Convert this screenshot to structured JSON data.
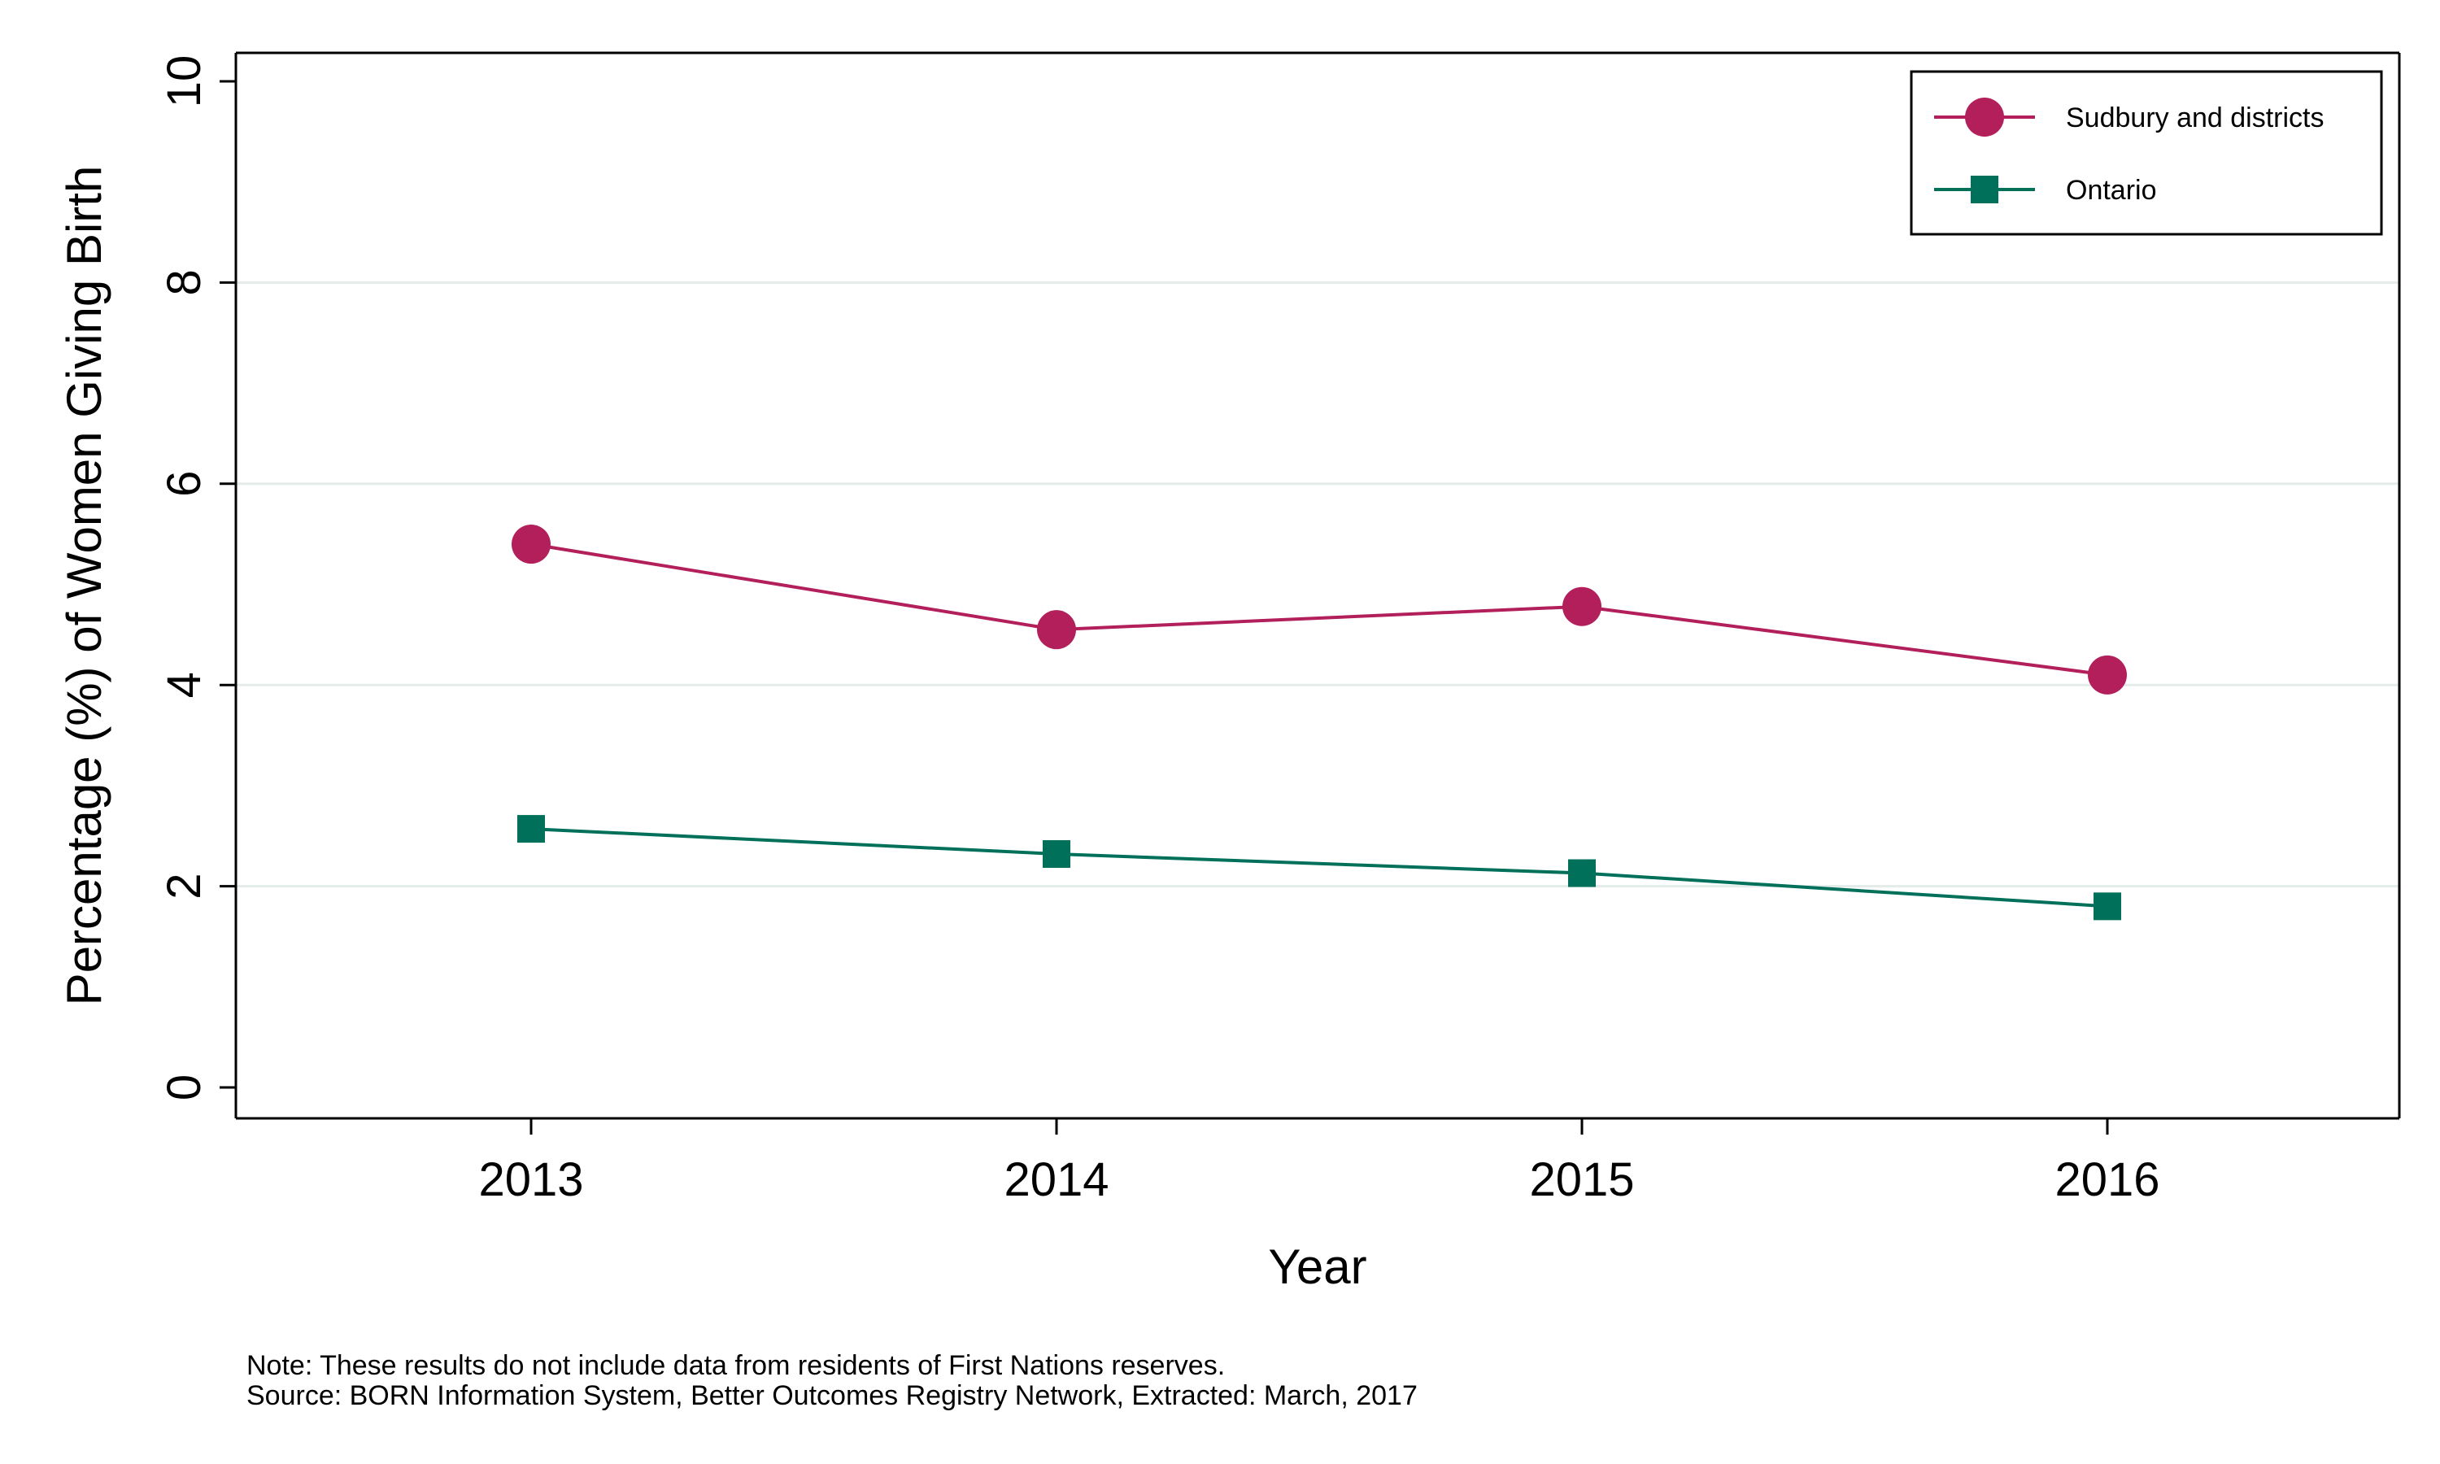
{
  "chart_data": {
    "type": "line",
    "x": [
      "2013",
      "2014",
      "2015",
      "2016"
    ],
    "series": [
      {
        "name": "Sudbury and districts",
        "values": [
          5.4,
          4.55,
          4.78,
          4.1
        ],
        "color": "#b21f5a",
        "marker": "circle"
      },
      {
        "name": "Ontario",
        "values": [
          2.57,
          2.32,
          2.13,
          1.8
        ],
        "color": "#00705a",
        "marker": "square"
      }
    ],
    "xlabel": "Year",
    "ylabel": "Percentage (%) of Women Giving Birth",
    "ylim": [
      0,
      10
    ],
    "yticks": [
      0,
      2,
      4,
      6,
      8,
      10
    ],
    "grid": true,
    "legend_position": "top-right"
  },
  "notes": {
    "line1": "Note: These results do not include data from residents of First Nations reserves.",
    "line2": "Source: BORN Information System, Better Outcomes Registry Network, Extracted: March, 2017"
  },
  "colors": {
    "grid": "#e3ece9",
    "axis": "#000000"
  }
}
